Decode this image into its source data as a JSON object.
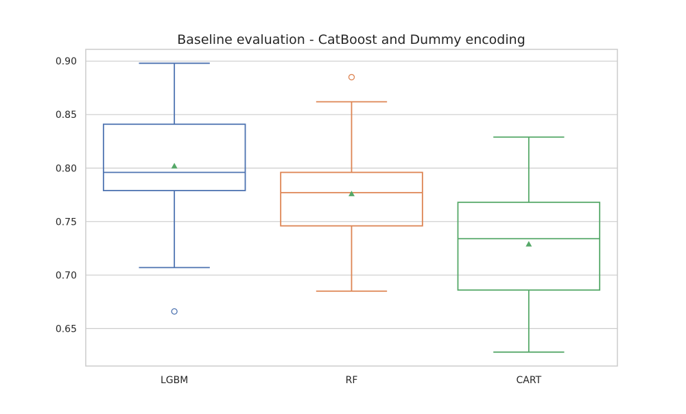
{
  "chart_data": {
    "type": "box",
    "title": "Baseline evaluation - CatBoost and Dummy encoding",
    "xlabel": "",
    "ylabel": "",
    "ylim": [
      0.615,
      0.911
    ],
    "yticks": [
      0.65,
      0.7,
      0.75,
      0.8,
      0.85,
      0.9
    ],
    "ytick_labels": [
      "0.65",
      "0.70",
      "0.75",
      "0.80",
      "0.85",
      "0.90"
    ],
    "grid": "horizontal",
    "mean_marker_color": "#55a868",
    "categories": [
      "LGBM",
      "RF",
      "CART"
    ],
    "series": [
      {
        "category": "LGBM",
        "color": "#4c72b0",
        "whisker_low": 0.707,
        "q1": 0.779,
        "median": 0.796,
        "q3": 0.841,
        "whisker_high": 0.898,
        "mean": 0.802,
        "outliers": [
          0.666
        ]
      },
      {
        "category": "RF",
        "color": "#dd8452",
        "whisker_low": 0.685,
        "q1": 0.746,
        "median": 0.777,
        "q3": 0.796,
        "whisker_high": 0.862,
        "mean": 0.776,
        "outliers": [
          0.885
        ]
      },
      {
        "category": "CART",
        "color": "#55a868",
        "whisker_low": 0.628,
        "q1": 0.686,
        "median": 0.734,
        "q3": 0.768,
        "whisker_high": 0.829,
        "mean": 0.729,
        "outliers": []
      }
    ]
  }
}
